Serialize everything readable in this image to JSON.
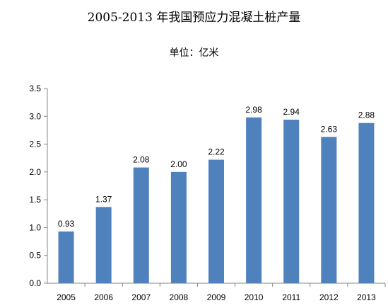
{
  "chart_data": {
    "type": "bar",
    "title": "2005-2013 年我国预应力混凝土桩产量",
    "subtitle": "单位：亿米",
    "categories": [
      "2005",
      "2006",
      "2007",
      "2008",
      "2009",
      "2010",
      "2011",
      "2012",
      "2013"
    ],
    "values": [
      0.93,
      1.37,
      2.08,
      2.0,
      2.22,
      2.98,
      2.94,
      2.63,
      2.88
    ],
    "value_labels": [
      "0.93",
      "1.37",
      "2.08",
      "2.00",
      "2.22",
      "2.98",
      "2.94",
      "2.63",
      "2.88"
    ],
    "ylim": [
      0,
      3.5
    ],
    "yticks": [
      "0.0",
      "0.5",
      "1.0",
      "1.5",
      "2.0",
      "2.5",
      "3.0",
      "3.5"
    ],
    "xlabel": "",
    "ylabel": "",
    "grid": false,
    "bar_color": "#4F81BD"
  }
}
